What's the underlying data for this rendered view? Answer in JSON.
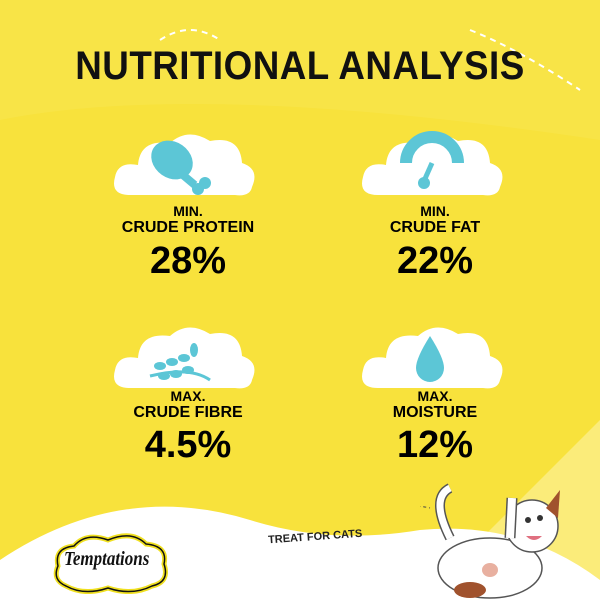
{
  "title": "NUTRITIONAL ANALYSIS",
  "nutrients": [
    {
      "qualifier": "MIN.",
      "name": "CRUDE PROTEIN",
      "value": "28%",
      "icon": "chicken-leg-icon"
    },
    {
      "qualifier": "MIN.",
      "name": "CRUDE FAT",
      "value": "22%",
      "icon": "gauge-icon"
    },
    {
      "qualifier": "MAX.",
      "name": "CRUDE FIBRE",
      "value": "4.5%",
      "icon": "wheat-icon"
    },
    {
      "qualifier": "MAX.",
      "name": "MOISTURE",
      "value": "12%",
      "icon": "water-drop-icon"
    }
  ],
  "tagline": "TREAT FOR CATS",
  "brand": "Temptations",
  "colors": {
    "background": "#f8e23c",
    "icon": "#5cc6d6",
    "cloud": "#ffffff",
    "text": "#111111"
  }
}
